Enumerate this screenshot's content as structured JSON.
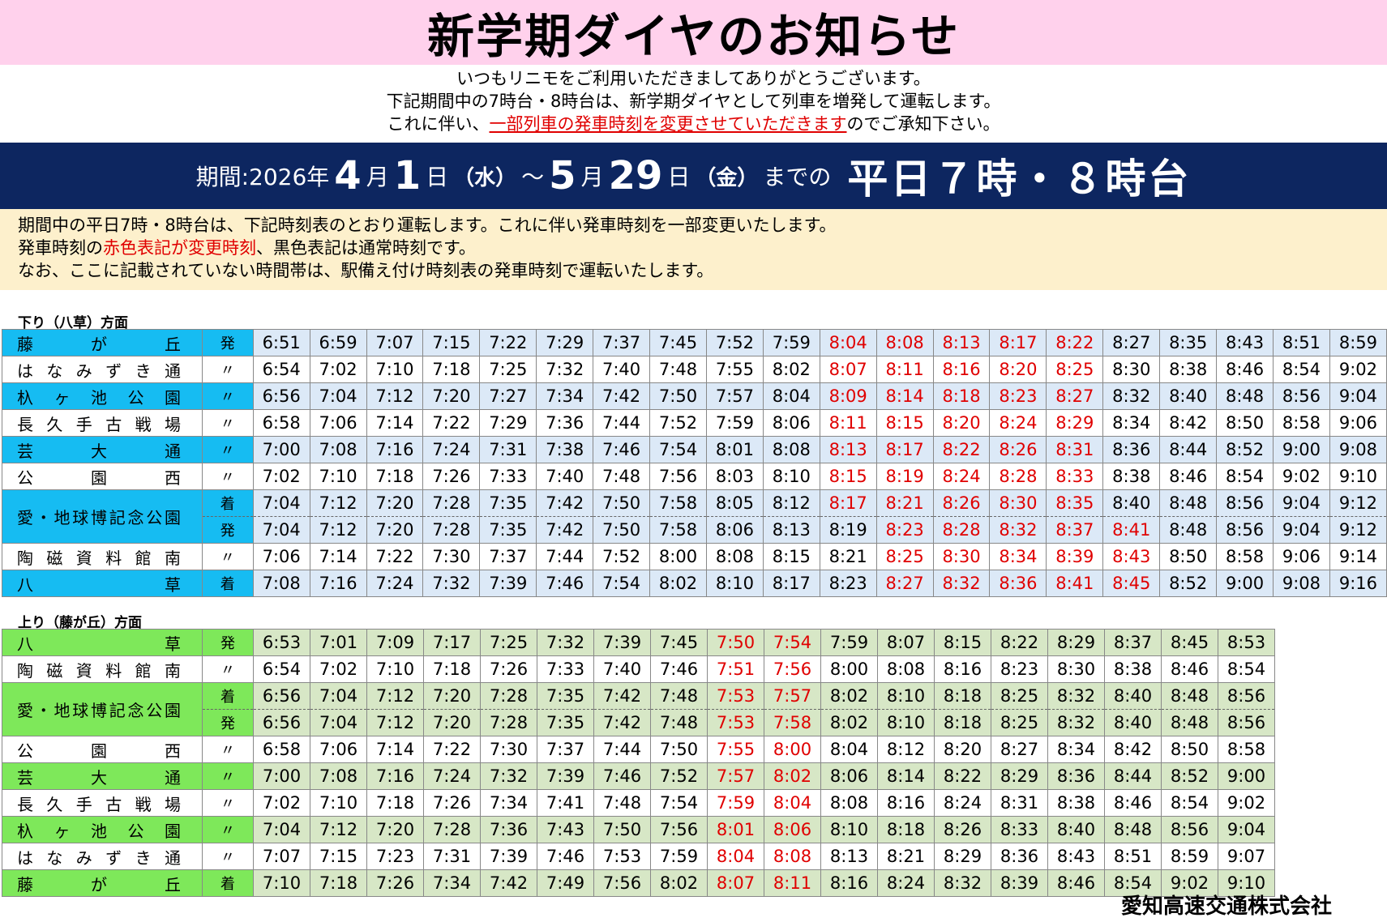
{
  "title": "新学期ダイヤのお知らせ",
  "intro": {
    "line1": "いつもリニモをご利用いただきましてありがとうございます。",
    "line2": "下記期間中の7時台・8時台は、新学期ダイヤとして列車を増発して運転します。",
    "line3_pre": "これに伴い、",
    "line3_red": "一部列車の発車時刻を変更させていただきます",
    "line3_post": "のでご承知下さい。"
  },
  "period": {
    "label": "期間:2026年",
    "m1": "4",
    "u1": "月",
    "d1": "1",
    "u2": "日",
    "w1": "（水）",
    "sep": "～",
    "m2": "5",
    "u3": "月",
    "d2": "29",
    "u4": "日",
    "w2": "（金）",
    "made": "までの",
    "highlight": "平日７時・８時台"
  },
  "note": {
    "line1": "期間中の平日7時・8時台は、下記時刻表のとおり運転します。これに伴い発車時刻を一部変更いたします。",
    "line2_a": "発車時刻の",
    "line2_red": "赤色表記が変更時刻",
    "line2_b": "、黒色表記は通常時刻です。",
    "line3": "なお、ここに記載されていない時間帯は、駅備え付け時刻表の発車時刻で運転いたします。"
  },
  "down": {
    "heading": "下り（八草）方面",
    "rows": [
      {
        "station": "藤が丘",
        "mark": "発",
        "alt": true,
        "times": [
          "6:51",
          "6:59",
          "7:07",
          "7:15",
          "7:22",
          "7:29",
          "7:37",
          "7:45",
          "7:52",
          "7:59",
          "8:04",
          "8:08",
          "8:13",
          "8:17",
          "8:22",
          "8:27",
          "8:35",
          "8:43",
          "8:51",
          "8:59"
        ],
        "red": [
          10,
          11,
          12,
          13,
          14
        ]
      },
      {
        "station": "はなみずき通",
        "mark": "〃",
        "alt": false,
        "times": [
          "6:54",
          "7:02",
          "7:10",
          "7:18",
          "7:25",
          "7:32",
          "7:40",
          "7:48",
          "7:55",
          "8:02",
          "8:07",
          "8:11",
          "8:16",
          "8:20",
          "8:25",
          "8:30",
          "8:38",
          "8:46",
          "8:54",
          "9:02"
        ],
        "red": [
          10,
          11,
          12,
          13,
          14
        ]
      },
      {
        "station": "杁ヶ池公園",
        "mark": "〃",
        "alt": true,
        "times": [
          "6:56",
          "7:04",
          "7:12",
          "7:20",
          "7:27",
          "7:34",
          "7:42",
          "7:50",
          "7:57",
          "8:04",
          "8:09",
          "8:14",
          "8:18",
          "8:23",
          "8:27",
          "8:32",
          "8:40",
          "8:48",
          "8:56",
          "9:04"
        ],
        "red": [
          10,
          11,
          12,
          13,
          14
        ]
      },
      {
        "station": "長久手古戦場",
        "mark": "〃",
        "alt": false,
        "times": [
          "6:58",
          "7:06",
          "7:14",
          "7:22",
          "7:29",
          "7:36",
          "7:44",
          "7:52",
          "7:59",
          "8:06",
          "8:11",
          "8:15",
          "8:20",
          "8:24",
          "8:29",
          "8:34",
          "8:42",
          "8:50",
          "8:58",
          "9:06"
        ],
        "red": [
          10,
          11,
          12,
          13,
          14
        ]
      },
      {
        "station": "芸大通",
        "mark": "〃",
        "alt": true,
        "times": [
          "7:00",
          "7:08",
          "7:16",
          "7:24",
          "7:31",
          "7:38",
          "7:46",
          "7:54",
          "8:01",
          "8:08",
          "8:13",
          "8:17",
          "8:22",
          "8:26",
          "8:31",
          "8:36",
          "8:44",
          "8:52",
          "9:00",
          "9:08"
        ],
        "red": [
          10,
          11,
          12,
          13,
          14
        ]
      },
      {
        "station": "公園西",
        "mark": "〃",
        "alt": false,
        "times": [
          "7:02",
          "7:10",
          "7:18",
          "7:26",
          "7:33",
          "7:40",
          "7:48",
          "7:56",
          "8:03",
          "8:10",
          "8:15",
          "8:19",
          "8:24",
          "8:28",
          "8:33",
          "8:38",
          "8:46",
          "8:54",
          "9:02",
          "9:10"
        ],
        "red": [
          10,
          11,
          12,
          13,
          14
        ]
      },
      {
        "station": "愛・地球博記念公園",
        "mark": "着",
        "alt": true,
        "span": true,
        "times": [
          "7:04",
          "7:12",
          "7:20",
          "7:28",
          "7:35",
          "7:42",
          "7:50",
          "7:58",
          "8:05",
          "8:12",
          "8:17",
          "8:21",
          "8:26",
          "8:30",
          "8:35",
          "8:40",
          "8:48",
          "8:56",
          "9:04",
          "9:12"
        ],
        "red": [
          10,
          11,
          12,
          13,
          14
        ]
      },
      {
        "station": "",
        "mark": "発",
        "alt": true,
        "cont": true,
        "times": [
          "7:04",
          "7:12",
          "7:20",
          "7:28",
          "7:35",
          "7:42",
          "7:50",
          "7:58",
          "8:06",
          "8:13",
          "8:19",
          "8:23",
          "8:28",
          "8:32",
          "8:37",
          "8:41",
          "8:48",
          "8:56",
          "9:04",
          "9:12"
        ],
        "red": [
          11,
          12,
          13,
          14,
          15
        ]
      },
      {
        "station": "陶磁資料館南",
        "mark": "〃",
        "alt": false,
        "times": [
          "7:06",
          "7:14",
          "7:22",
          "7:30",
          "7:37",
          "7:44",
          "7:52",
          "8:00",
          "8:08",
          "8:15",
          "8:21",
          "8:25",
          "8:30",
          "8:34",
          "8:39",
          "8:43",
          "8:50",
          "8:58",
          "9:06",
          "9:14"
        ],
        "red": [
          11,
          12,
          13,
          14,
          15
        ]
      },
      {
        "station": "八草",
        "mark": "着",
        "alt": true,
        "times": [
          "7:08",
          "7:16",
          "7:24",
          "7:32",
          "7:39",
          "7:46",
          "7:54",
          "8:02",
          "8:10",
          "8:17",
          "8:23",
          "8:27",
          "8:32",
          "8:36",
          "8:41",
          "8:45",
          "8:52",
          "9:00",
          "9:08",
          "9:16"
        ],
        "red": [
          11,
          12,
          13,
          14,
          15
        ]
      }
    ]
  },
  "up": {
    "heading": "上り（藤が丘）方面",
    "rows": [
      {
        "station": "八草",
        "mark": "発",
        "alt": true,
        "times": [
          "6:53",
          "7:01",
          "7:09",
          "7:17",
          "7:25",
          "7:32",
          "7:39",
          "7:45",
          "7:50",
          "7:54",
          "7:59",
          "8:07",
          "8:15",
          "8:22",
          "8:29",
          "8:37",
          "8:45",
          "8:53"
        ],
        "red": [
          8,
          9
        ]
      },
      {
        "station": "陶磁資料館南",
        "mark": "〃",
        "alt": false,
        "times": [
          "6:54",
          "7:02",
          "7:10",
          "7:18",
          "7:26",
          "7:33",
          "7:40",
          "7:46",
          "7:51",
          "7:56",
          "8:00",
          "8:08",
          "8:16",
          "8:23",
          "8:30",
          "8:38",
          "8:46",
          "8:54"
        ],
        "red": [
          8,
          9
        ]
      },
      {
        "station": "愛・地球博記念公園",
        "mark": "着",
        "alt": true,
        "span": true,
        "times": [
          "6:56",
          "7:04",
          "7:12",
          "7:20",
          "7:28",
          "7:35",
          "7:42",
          "7:48",
          "7:53",
          "7:57",
          "8:02",
          "8:10",
          "8:18",
          "8:25",
          "8:32",
          "8:40",
          "8:48",
          "8:56"
        ],
        "red": [
          8,
          9
        ]
      },
      {
        "station": "",
        "mark": "発",
        "alt": true,
        "cont": true,
        "times": [
          "6:56",
          "7:04",
          "7:12",
          "7:20",
          "7:28",
          "7:35",
          "7:42",
          "7:48",
          "7:53",
          "7:58",
          "8:02",
          "8:10",
          "8:18",
          "8:25",
          "8:32",
          "8:40",
          "8:48",
          "8:56"
        ],
        "red": [
          8,
          9
        ]
      },
      {
        "station": "公園西",
        "mark": "〃",
        "alt": false,
        "times": [
          "6:58",
          "7:06",
          "7:14",
          "7:22",
          "7:30",
          "7:37",
          "7:44",
          "7:50",
          "7:55",
          "8:00",
          "8:04",
          "8:12",
          "8:20",
          "8:27",
          "8:34",
          "8:42",
          "8:50",
          "8:58"
        ],
        "red": [
          8,
          9
        ]
      },
      {
        "station": "芸大通",
        "mark": "〃",
        "alt": true,
        "times": [
          "7:00",
          "7:08",
          "7:16",
          "7:24",
          "7:32",
          "7:39",
          "7:46",
          "7:52",
          "7:57",
          "8:02",
          "8:06",
          "8:14",
          "8:22",
          "8:29",
          "8:36",
          "8:44",
          "8:52",
          "9:00"
        ],
        "red": [
          8,
          9
        ]
      },
      {
        "station": "長久手古戦場",
        "mark": "〃",
        "alt": false,
        "times": [
          "7:02",
          "7:10",
          "7:18",
          "7:26",
          "7:34",
          "7:41",
          "7:48",
          "7:54",
          "7:59",
          "8:04",
          "8:08",
          "8:16",
          "8:24",
          "8:31",
          "8:38",
          "8:46",
          "8:54",
          "9:02"
        ],
        "red": [
          8,
          9
        ]
      },
      {
        "station": "杁ヶ池公園",
        "mark": "〃",
        "alt": true,
        "times": [
          "7:04",
          "7:12",
          "7:20",
          "7:28",
          "7:36",
          "7:43",
          "7:50",
          "7:56",
          "8:01",
          "8:06",
          "8:10",
          "8:18",
          "8:26",
          "8:33",
          "8:40",
          "8:48",
          "8:56",
          "9:04"
        ],
        "red": [
          8,
          9
        ]
      },
      {
        "station": "はなみずき通",
        "mark": "〃",
        "alt": false,
        "times": [
          "7:07",
          "7:15",
          "7:23",
          "7:31",
          "7:39",
          "7:46",
          "7:53",
          "7:59",
          "8:04",
          "8:08",
          "8:13",
          "8:21",
          "8:29",
          "8:36",
          "8:43",
          "8:51",
          "8:59",
          "9:07"
        ],
        "red": [
          8,
          9
        ]
      },
      {
        "station": "藤が丘",
        "mark": "着",
        "alt": true,
        "times": [
          "7:10",
          "7:18",
          "7:26",
          "7:34",
          "7:42",
          "7:49",
          "7:56",
          "8:02",
          "8:07",
          "8:11",
          "8:16",
          "8:24",
          "8:32",
          "8:39",
          "8:46",
          "8:54",
          "9:02",
          "9:10"
        ],
        "red": [
          8,
          9
        ]
      }
    ]
  },
  "company": "愛知高速交通株式会社"
}
